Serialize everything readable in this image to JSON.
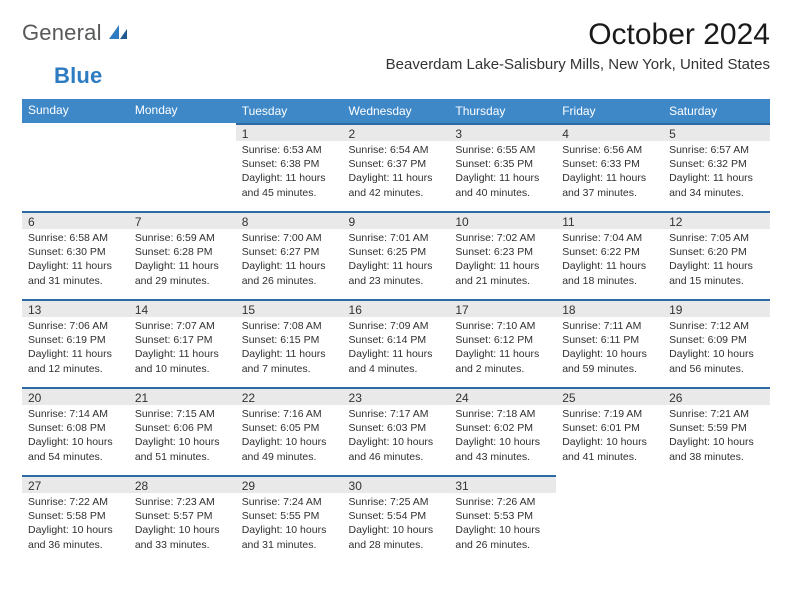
{
  "brand": {
    "text1": "General",
    "text2": "Blue"
  },
  "header": {
    "title": "October 2024",
    "location": "Beaverdam Lake-Salisbury Mills, New York, United States"
  },
  "colors": {
    "header_bg": "#3e88c8",
    "header_text": "#ffffff",
    "daynum_bg": "#e9e9e9",
    "daynum_border": "#2d6aa3",
    "body_text": "#303030",
    "logo_gray": "#58595b",
    "logo_blue": "#2d7bc0"
  },
  "typography": {
    "title_fontsize": 30,
    "location_fontsize": 15,
    "dayheader_fontsize": 12,
    "daynum_fontsize": 12,
    "cell_fontsize": 10.5,
    "font_family": "Arial"
  },
  "day_headers": [
    "Sunday",
    "Monday",
    "Tuesday",
    "Wednesday",
    "Thursday",
    "Friday",
    "Saturday"
  ],
  "weeks": [
    [
      {
        "num": "",
        "lines": []
      },
      {
        "num": "",
        "lines": []
      },
      {
        "num": "1",
        "lines": [
          "Sunrise: 6:53 AM",
          "Sunset: 6:38 PM",
          "Daylight: 11 hours and 45 minutes."
        ]
      },
      {
        "num": "2",
        "lines": [
          "Sunrise: 6:54 AM",
          "Sunset: 6:37 PM",
          "Daylight: 11 hours and 42 minutes."
        ]
      },
      {
        "num": "3",
        "lines": [
          "Sunrise: 6:55 AM",
          "Sunset: 6:35 PM",
          "Daylight: 11 hours and 40 minutes."
        ]
      },
      {
        "num": "4",
        "lines": [
          "Sunrise: 6:56 AM",
          "Sunset: 6:33 PM",
          "Daylight: 11 hours and 37 minutes."
        ]
      },
      {
        "num": "5",
        "lines": [
          "Sunrise: 6:57 AM",
          "Sunset: 6:32 PM",
          "Daylight: 11 hours and 34 minutes."
        ]
      }
    ],
    [
      {
        "num": "6",
        "lines": [
          "Sunrise: 6:58 AM",
          "Sunset: 6:30 PM",
          "Daylight: 11 hours and 31 minutes."
        ]
      },
      {
        "num": "7",
        "lines": [
          "Sunrise: 6:59 AM",
          "Sunset: 6:28 PM",
          "Daylight: 11 hours and 29 minutes."
        ]
      },
      {
        "num": "8",
        "lines": [
          "Sunrise: 7:00 AM",
          "Sunset: 6:27 PM",
          "Daylight: 11 hours and 26 minutes."
        ]
      },
      {
        "num": "9",
        "lines": [
          "Sunrise: 7:01 AM",
          "Sunset: 6:25 PM",
          "Daylight: 11 hours and 23 minutes."
        ]
      },
      {
        "num": "10",
        "lines": [
          "Sunrise: 7:02 AM",
          "Sunset: 6:23 PM",
          "Daylight: 11 hours and 21 minutes."
        ]
      },
      {
        "num": "11",
        "lines": [
          "Sunrise: 7:04 AM",
          "Sunset: 6:22 PM",
          "Daylight: 11 hours and 18 minutes."
        ]
      },
      {
        "num": "12",
        "lines": [
          "Sunrise: 7:05 AM",
          "Sunset: 6:20 PM",
          "Daylight: 11 hours and 15 minutes."
        ]
      }
    ],
    [
      {
        "num": "13",
        "lines": [
          "Sunrise: 7:06 AM",
          "Sunset: 6:19 PM",
          "Daylight: 11 hours and 12 minutes."
        ]
      },
      {
        "num": "14",
        "lines": [
          "Sunrise: 7:07 AM",
          "Sunset: 6:17 PM",
          "Daylight: 11 hours and 10 minutes."
        ]
      },
      {
        "num": "15",
        "lines": [
          "Sunrise: 7:08 AM",
          "Sunset: 6:15 PM",
          "Daylight: 11 hours and 7 minutes."
        ]
      },
      {
        "num": "16",
        "lines": [
          "Sunrise: 7:09 AM",
          "Sunset: 6:14 PM",
          "Daylight: 11 hours and 4 minutes."
        ]
      },
      {
        "num": "17",
        "lines": [
          "Sunrise: 7:10 AM",
          "Sunset: 6:12 PM",
          "Daylight: 11 hours and 2 minutes."
        ]
      },
      {
        "num": "18",
        "lines": [
          "Sunrise: 7:11 AM",
          "Sunset: 6:11 PM",
          "Daylight: 10 hours and 59 minutes."
        ]
      },
      {
        "num": "19",
        "lines": [
          "Sunrise: 7:12 AM",
          "Sunset: 6:09 PM",
          "Daylight: 10 hours and 56 minutes."
        ]
      }
    ],
    [
      {
        "num": "20",
        "lines": [
          "Sunrise: 7:14 AM",
          "Sunset: 6:08 PM",
          "Daylight: 10 hours and 54 minutes."
        ]
      },
      {
        "num": "21",
        "lines": [
          "Sunrise: 7:15 AM",
          "Sunset: 6:06 PM",
          "Daylight: 10 hours and 51 minutes."
        ]
      },
      {
        "num": "22",
        "lines": [
          "Sunrise: 7:16 AM",
          "Sunset: 6:05 PM",
          "Daylight: 10 hours and 49 minutes."
        ]
      },
      {
        "num": "23",
        "lines": [
          "Sunrise: 7:17 AM",
          "Sunset: 6:03 PM",
          "Daylight: 10 hours and 46 minutes."
        ]
      },
      {
        "num": "24",
        "lines": [
          "Sunrise: 7:18 AM",
          "Sunset: 6:02 PM",
          "Daylight: 10 hours and 43 minutes."
        ]
      },
      {
        "num": "25",
        "lines": [
          "Sunrise: 7:19 AM",
          "Sunset: 6:01 PM",
          "Daylight: 10 hours and 41 minutes."
        ]
      },
      {
        "num": "26",
        "lines": [
          "Sunrise: 7:21 AM",
          "Sunset: 5:59 PM",
          "Daylight: 10 hours and 38 minutes."
        ]
      }
    ],
    [
      {
        "num": "27",
        "lines": [
          "Sunrise: 7:22 AM",
          "Sunset: 5:58 PM",
          "Daylight: 10 hours and 36 minutes."
        ]
      },
      {
        "num": "28",
        "lines": [
          "Sunrise: 7:23 AM",
          "Sunset: 5:57 PM",
          "Daylight: 10 hours and 33 minutes."
        ]
      },
      {
        "num": "29",
        "lines": [
          "Sunrise: 7:24 AM",
          "Sunset: 5:55 PM",
          "Daylight: 10 hours and 31 minutes."
        ]
      },
      {
        "num": "30",
        "lines": [
          "Sunrise: 7:25 AM",
          "Sunset: 5:54 PM",
          "Daylight: 10 hours and 28 minutes."
        ]
      },
      {
        "num": "31",
        "lines": [
          "Sunrise: 7:26 AM",
          "Sunset: 5:53 PM",
          "Daylight: 10 hours and 26 minutes."
        ]
      },
      {
        "num": "",
        "lines": []
      },
      {
        "num": "",
        "lines": []
      }
    ]
  ]
}
